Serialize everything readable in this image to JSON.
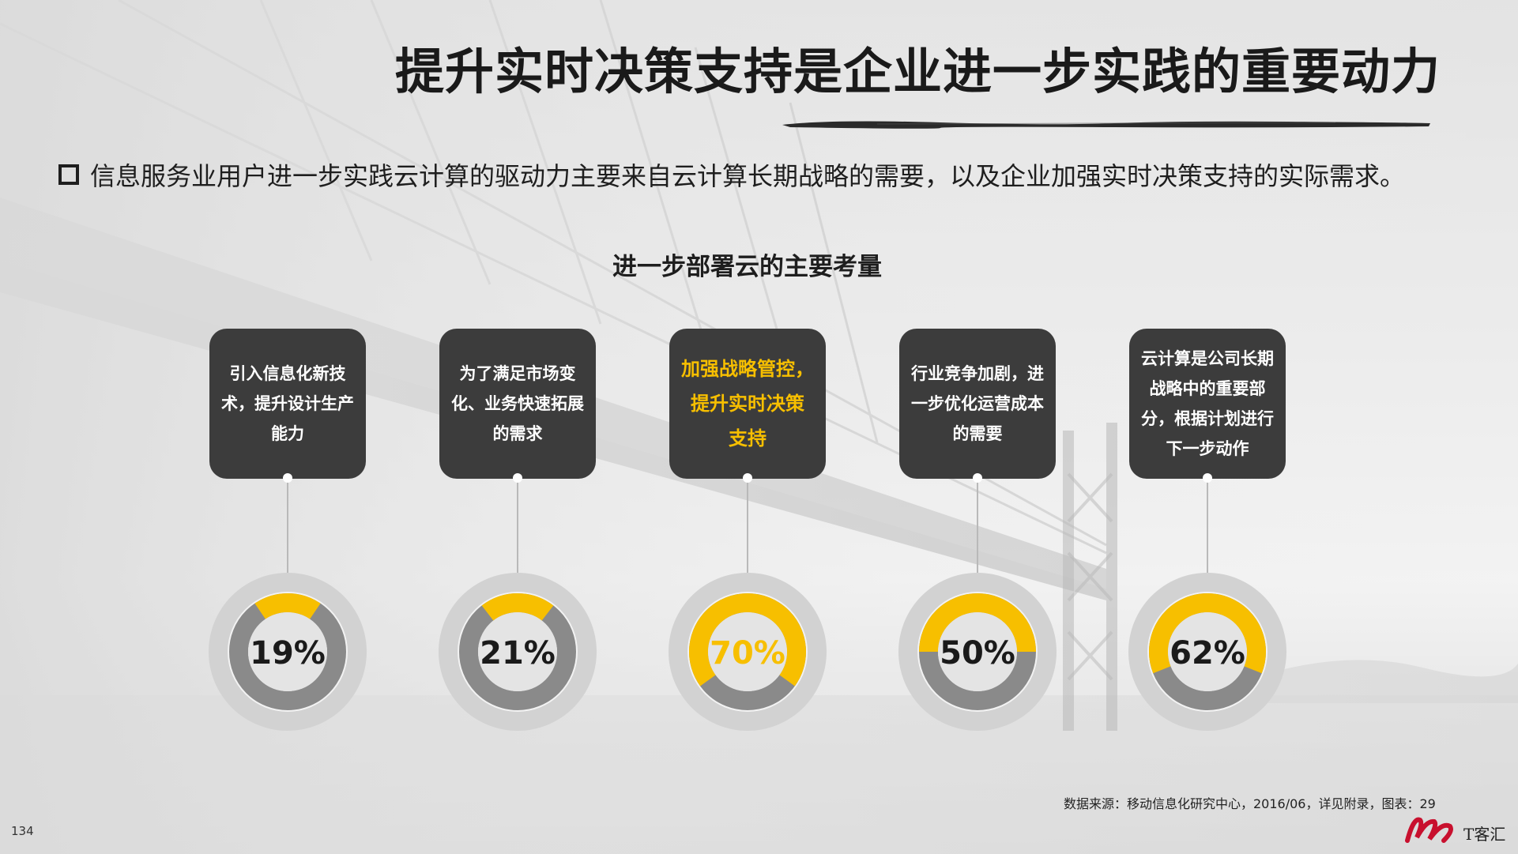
{
  "title": "提升实时决策支持是企业进一步实践的重要动力",
  "bullet": "信息服务业用户进一步实践云计算的驱动力主要来自云计算长期战略的需要，以及企业加强实时决策支持的实际需求。",
  "chart_data": {
    "type": "pie",
    "title": "进一步部署云的主要考量",
    "categories": [
      "引入信息化新技术，提升设计生产能力",
      "为了满足市场变化、业务快速拓展的需求",
      "加强战略管控，提升实时决策支持",
      "行业竞争加剧，进一步优化运营成本的需要",
      "云计算是公司长期战略中的重要部分，根据计划进行下一步动作"
    ],
    "values": [
      19,
      21,
      70,
      50,
      62
    ],
    "labels": [
      "19%",
      "21%",
      "70%",
      "50%",
      "62%"
    ],
    "highlight_index": 2,
    "colors": {
      "fill": "#f7bf00",
      "rest": "#8a8a8a",
      "outer_ring": "#d2d2d2",
      "inner": "#e4e4e4",
      "highlight_text": "#f7bf00"
    }
  },
  "cards": [
    {
      "lines": [
        "引入信息化新技",
        "术，提升设计生产",
        "能力"
      ]
    },
    {
      "lines": [
        "为了满足市场变",
        "化、业务快速拓展",
        "的需求"
      ]
    },
    {
      "lines": [
        "加强战略管控，",
        "提升实时决策",
        "支持"
      ]
    },
    {
      "lines": [
        "行业竞争加剧，进",
        "一步优化运营成本",
        "的需要"
      ]
    },
    {
      "lines": [
        "云计算是公司长期",
        "战略中的重要部",
        "分，根据计划进行",
        "下一步动作"
      ]
    }
  ],
  "source": "数据来源：移动信息化研究中心，2016/06，详见附录，图表：29",
  "page_number": "134",
  "logo": {
    "text": "T客汇"
  }
}
